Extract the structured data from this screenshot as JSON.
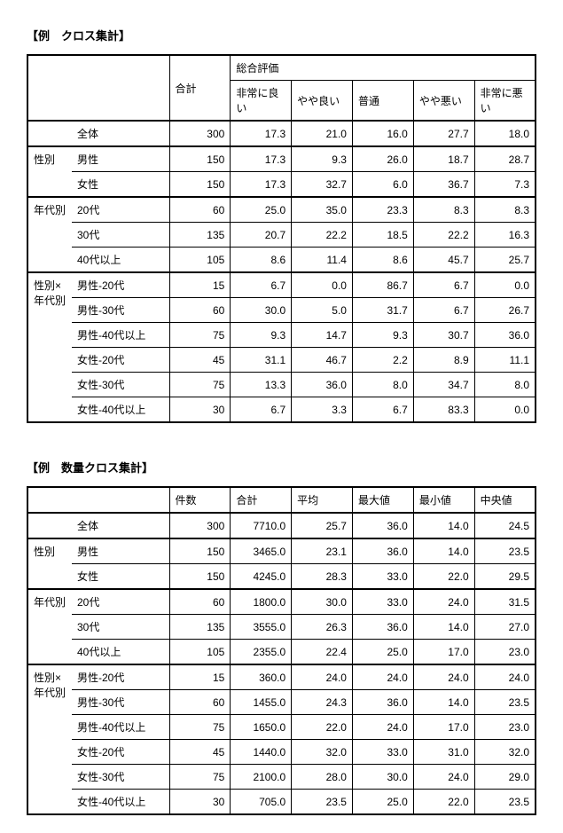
{
  "t1": {
    "title": "【例　クロス集計】",
    "header_group": "総合評価",
    "cols": [
      "合計",
      "非常に良い",
      "やや良い",
      "普通",
      "やや悪い",
      "非常に悪い"
    ],
    "groups": [
      {
        "cat": "",
        "rows": [
          {
            "label": "全体",
            "v": [
              "300",
              "17.3",
              "21.0",
              "16.0",
              "27.7",
              "18.0"
            ]
          }
        ]
      },
      {
        "cat": "性別",
        "rows": [
          {
            "label": "男性",
            "v": [
              "150",
              "17.3",
              "9.3",
              "26.0",
              "18.7",
              "28.7"
            ]
          },
          {
            "label": "女性",
            "v": [
              "150",
              "17.3",
              "32.7",
              "6.0",
              "36.7",
              "7.3"
            ]
          }
        ]
      },
      {
        "cat": "年代別",
        "rows": [
          {
            "label": "20代",
            "v": [
              "60",
              "25.0",
              "35.0",
              "23.3",
              "8.3",
              "8.3"
            ]
          },
          {
            "label": "30代",
            "v": [
              "135",
              "20.7",
              "22.2",
              "18.5",
              "22.2",
              "16.3"
            ]
          },
          {
            "label": "40代以上",
            "v": [
              "105",
              "8.6",
              "11.4",
              "8.6",
              "45.7",
              "25.7"
            ]
          }
        ]
      },
      {
        "cat": "性別×年代別",
        "rows": [
          {
            "label": "男性-20代",
            "v": [
              "15",
              "6.7",
              "0.0",
              "86.7",
              "6.7",
              "0.0"
            ]
          },
          {
            "label": "男性-30代",
            "v": [
              "60",
              "30.0",
              "5.0",
              "31.7",
              "6.7",
              "26.7"
            ]
          },
          {
            "label": "男性-40代以上",
            "v": [
              "75",
              "9.3",
              "14.7",
              "9.3",
              "30.7",
              "36.0"
            ]
          },
          {
            "label": "女性-20代",
            "v": [
              "45",
              "31.1",
              "46.7",
              "2.2",
              "8.9",
              "11.1"
            ]
          },
          {
            "label": "女性-30代",
            "v": [
              "75",
              "13.3",
              "36.0",
              "8.0",
              "34.7",
              "8.0"
            ]
          },
          {
            "label": "女性-40代以上",
            "v": [
              "30",
              "6.7",
              "3.3",
              "6.7",
              "83.3",
              "0.0"
            ]
          }
        ]
      }
    ]
  },
  "t2": {
    "title": "【例　数量クロス集計】",
    "cols": [
      "件数",
      "合計",
      "平均",
      "最大値",
      "最小値",
      "中央値"
    ],
    "groups": [
      {
        "cat": "",
        "rows": [
          {
            "label": "全体",
            "v": [
              "300",
              "7710.0",
              "25.7",
              "36.0",
              "14.0",
              "24.5"
            ]
          }
        ]
      },
      {
        "cat": "性別",
        "rows": [
          {
            "label": "男性",
            "v": [
              "150",
              "3465.0",
              "23.1",
              "36.0",
              "14.0",
              "23.5"
            ]
          },
          {
            "label": "女性",
            "v": [
              "150",
              "4245.0",
              "28.3",
              "33.0",
              "22.0",
              "29.5"
            ]
          }
        ]
      },
      {
        "cat": "年代別",
        "rows": [
          {
            "label": "20代",
            "v": [
              "60",
              "1800.0",
              "30.0",
              "33.0",
              "24.0",
              "31.5"
            ]
          },
          {
            "label": "30代",
            "v": [
              "135",
              "3555.0",
              "26.3",
              "36.0",
              "14.0",
              "27.0"
            ]
          },
          {
            "label": "40代以上",
            "v": [
              "105",
              "2355.0",
              "22.4",
              "25.0",
              "17.0",
              "23.0"
            ]
          }
        ]
      },
      {
        "cat": "性別×年代別",
        "rows": [
          {
            "label": "男性-20代",
            "v": [
              "15",
              "360.0",
              "24.0",
              "24.0",
              "24.0",
              "24.0"
            ]
          },
          {
            "label": "男性-30代",
            "v": [
              "60",
              "1455.0",
              "24.3",
              "36.0",
              "14.0",
              "23.5"
            ]
          },
          {
            "label": "男性-40代以上",
            "v": [
              "75",
              "1650.0",
              "22.0",
              "24.0",
              "17.0",
              "23.0"
            ]
          },
          {
            "label": "女性-20代",
            "v": [
              "45",
              "1440.0",
              "32.0",
              "33.0",
              "31.0",
              "32.0"
            ]
          },
          {
            "label": "女性-30代",
            "v": [
              "75",
              "2100.0",
              "28.0",
              "30.0",
              "24.0",
              "29.0"
            ]
          },
          {
            "label": "女性-40代以上",
            "v": [
              "30",
              "705.0",
              "23.5",
              "25.0",
              "22.0",
              "23.5"
            ]
          }
        ]
      }
    ]
  }
}
